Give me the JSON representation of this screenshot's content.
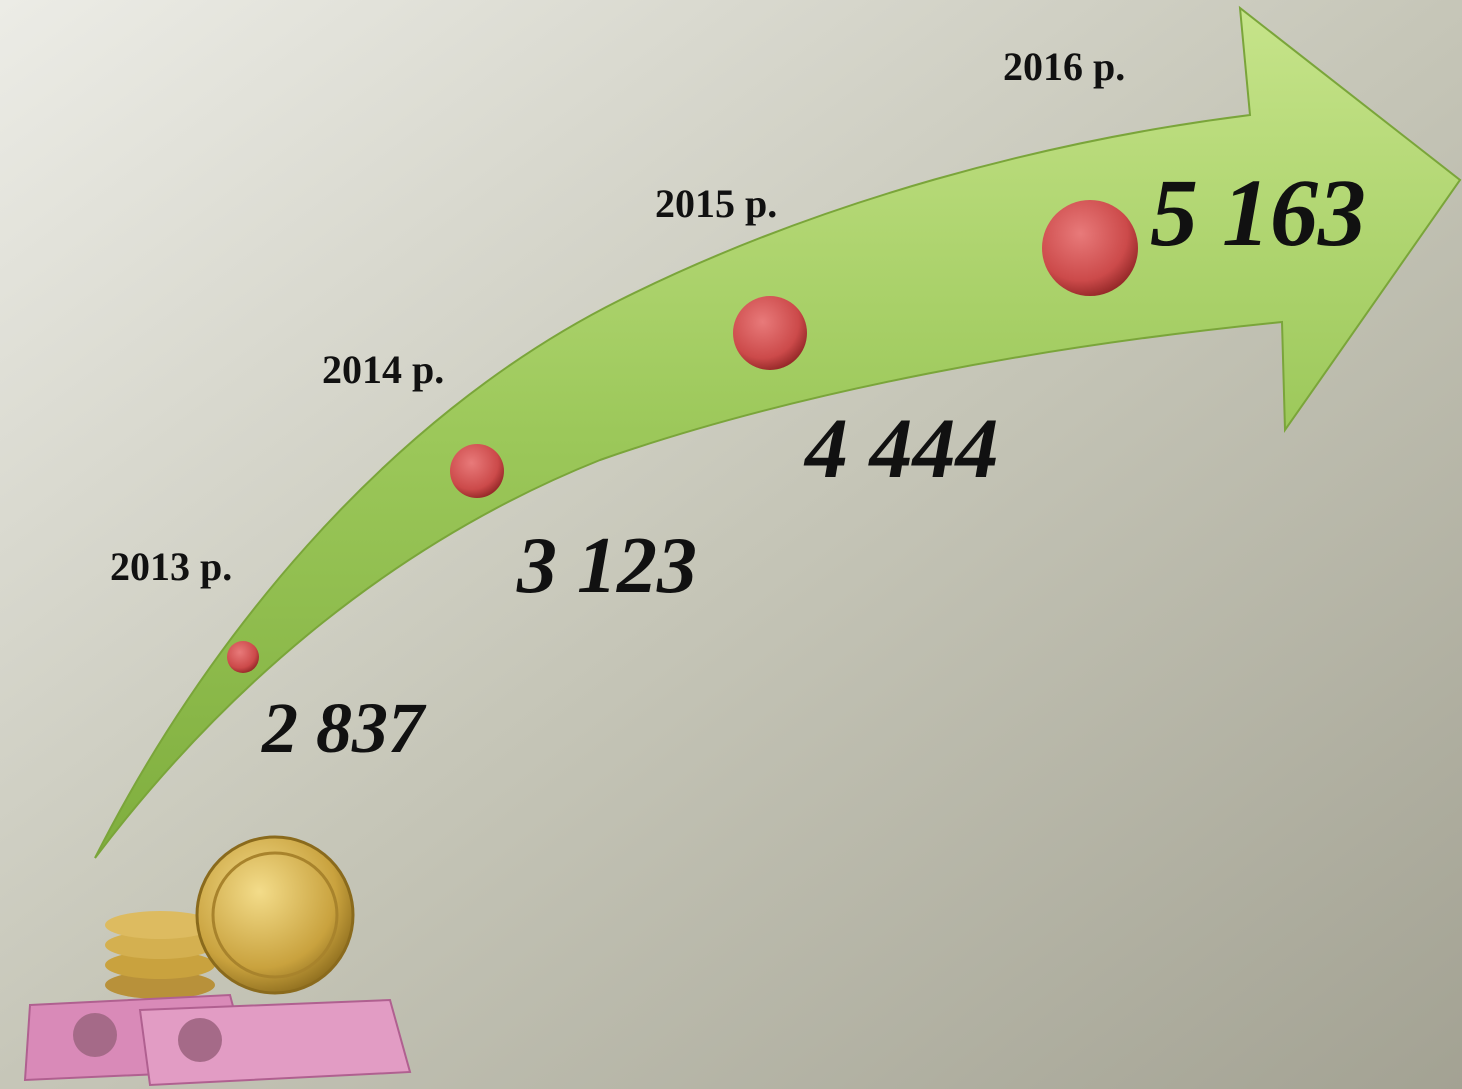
{
  "points": [
    {
      "year": "2013 р.",
      "value": "2 837"
    },
    {
      "year": "2014 р.",
      "value": "3 123"
    },
    {
      "year": "2015 р.",
      "value": "4 444"
    },
    {
      "year": "2016 р.",
      "value": "5 163"
    }
  ]
}
